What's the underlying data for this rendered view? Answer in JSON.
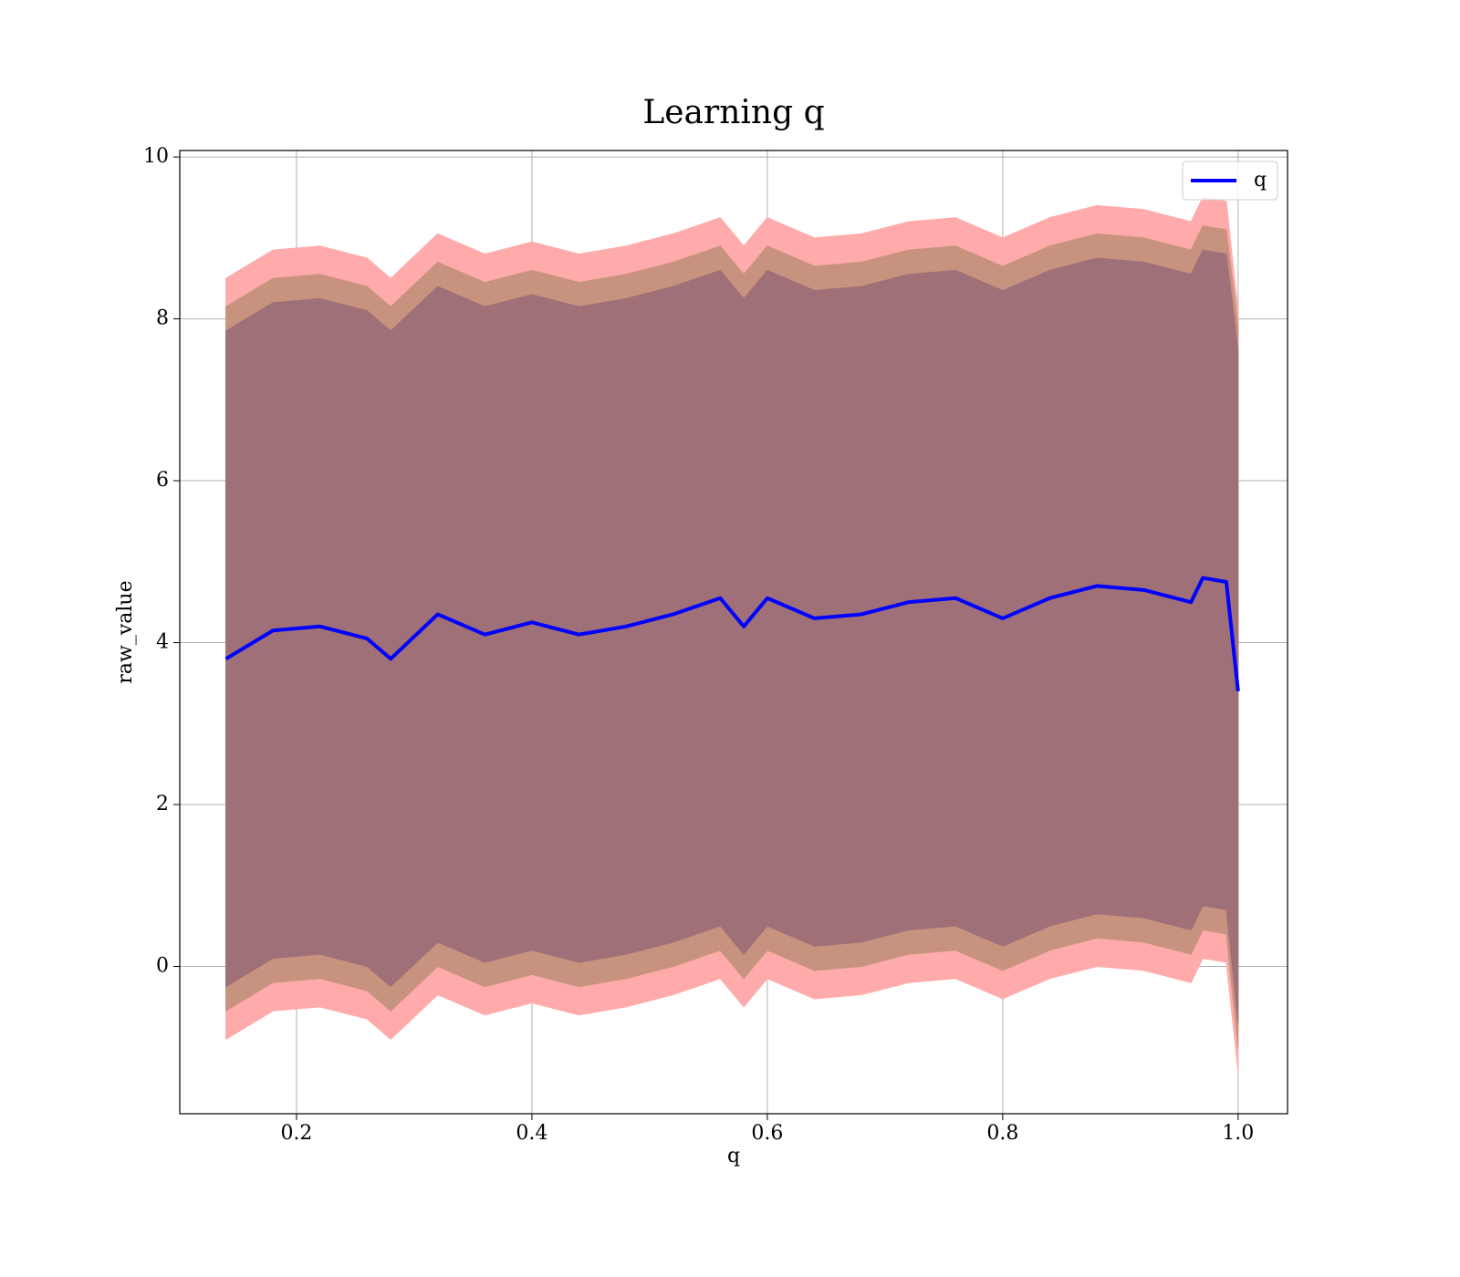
{
  "chart_data": {
    "type": "line",
    "title": "Learning q",
    "xlabel": "q",
    "ylabel": "raw_value",
    "x": [
      0.14,
      0.18,
      0.22,
      0.26,
      0.28,
      0.32,
      0.36,
      0.4,
      0.44,
      0.48,
      0.52,
      0.56,
      0.58,
      0.6,
      0.64,
      0.68,
      0.72,
      0.76,
      0.8,
      0.84,
      0.88,
      0.92,
      0.96,
      0.97,
      0.99,
      1.0
    ],
    "series": [
      {
        "name": "q",
        "color": "#0000ff",
        "values": [
          3.8,
          4.15,
          4.2,
          4.05,
          3.8,
          4.35,
          4.1,
          4.25,
          4.1,
          4.2,
          4.35,
          4.55,
          4.2,
          4.55,
          4.3,
          4.35,
          4.5,
          4.55,
          4.3,
          4.55,
          4.7,
          4.65,
          4.5,
          4.8,
          4.75,
          3.4
        ]
      }
    ],
    "bands": [
      {
        "color": "#ffabab",
        "upper": [
          8.5,
          8.85,
          8.9,
          8.75,
          8.5,
          9.05,
          8.8,
          8.95,
          8.8,
          8.9,
          9.05,
          9.25,
          8.9,
          9.25,
          9.0,
          9.05,
          9.2,
          9.25,
          9.0,
          9.25,
          9.4,
          9.35,
          9.2,
          9.5,
          9.45,
          8.1
        ],
        "lower": [
          -0.9,
          -0.55,
          -0.5,
          -0.65,
          -0.9,
          -0.35,
          -0.6,
          -0.45,
          -0.6,
          -0.5,
          -0.35,
          -0.15,
          -0.5,
          -0.15,
          -0.4,
          -0.35,
          -0.2,
          -0.15,
          -0.4,
          -0.15,
          0.0,
          -0.05,
          -0.2,
          0.1,
          0.05,
          -1.3
        ]
      },
      {
        "color": "#c8937e",
        "upper": [
          8.15,
          8.5,
          8.55,
          8.4,
          8.15,
          8.7,
          8.45,
          8.6,
          8.45,
          8.55,
          8.7,
          8.9,
          8.55,
          8.9,
          8.65,
          8.7,
          8.85,
          8.9,
          8.65,
          8.9,
          9.05,
          9.0,
          8.85,
          9.15,
          9.1,
          7.9
        ],
        "lower": [
          -0.55,
          -0.2,
          -0.15,
          -0.3,
          -0.55,
          0.0,
          -0.25,
          -0.1,
          -0.25,
          -0.15,
          0.0,
          0.2,
          -0.15,
          0.2,
          -0.05,
          0.0,
          0.15,
          0.2,
          -0.05,
          0.2,
          0.35,
          0.3,
          0.15,
          0.45,
          0.4,
          -1.0
        ]
      },
      {
        "color": "#a07078",
        "upper": [
          7.85,
          8.2,
          8.25,
          8.1,
          7.85,
          8.4,
          8.15,
          8.3,
          8.15,
          8.25,
          8.4,
          8.6,
          8.25,
          8.6,
          8.35,
          8.4,
          8.55,
          8.6,
          8.35,
          8.6,
          8.75,
          8.7,
          8.55,
          8.85,
          8.8,
          7.6
        ],
        "lower": [
          -0.25,
          0.1,
          0.15,
          0.0,
          -0.25,
          0.3,
          0.05,
          0.2,
          0.05,
          0.15,
          0.3,
          0.5,
          0.15,
          0.5,
          0.25,
          0.3,
          0.45,
          0.5,
          0.25,
          0.5,
          0.65,
          0.6,
          0.45,
          0.75,
          0.7,
          -0.7
        ]
      }
    ],
    "xlim": [
      0.1008,
      1.042
    ],
    "ylim": [
      -1.82,
      10.08
    ],
    "xticks": [
      0.2,
      0.4,
      0.6,
      0.8,
      {
        "value": 1,
        "label": "1.0"
      }
    ],
    "yticks": [
      0,
      2,
      4,
      6,
      8,
      10
    ],
    "grid": true,
    "legend": "upper right"
  }
}
